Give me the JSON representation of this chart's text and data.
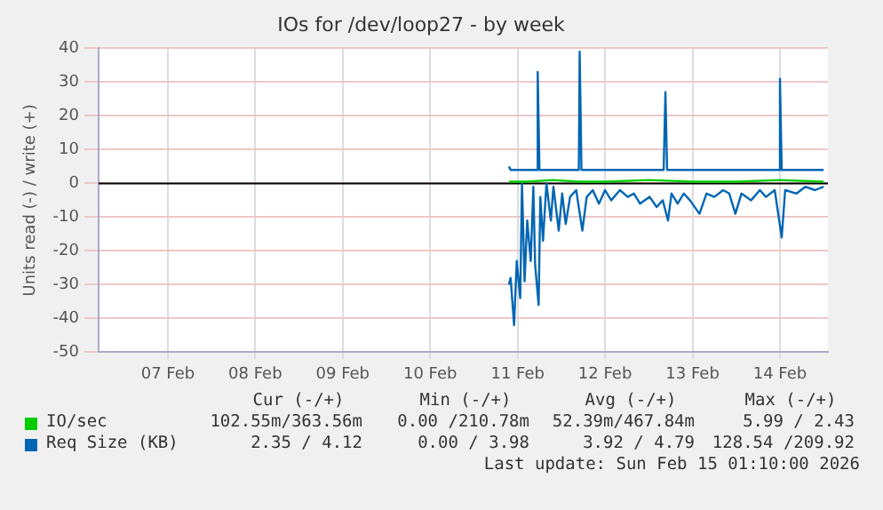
{
  "chart_data": {
    "type": "line",
    "title": "IOs for /dev/loop27 - by week",
    "ylabel": "Units read (-) / write (+)",
    "xlim": [
      "2026-02-06T17:00",
      "2026-02-15T01:10"
    ],
    "xticks": [
      {
        "value": "2026-02-07T12:00",
        "label": "07 Feb"
      },
      {
        "value": "2026-02-08T12:00",
        "label": "08 Feb"
      },
      {
        "value": "2026-02-09T12:00",
        "label": "09 Feb"
      },
      {
        "value": "2026-02-10T12:00",
        "label": "10 Feb"
      },
      {
        "value": "2026-02-11T12:00",
        "label": "11 Feb"
      },
      {
        "value": "2026-02-12T12:00",
        "label": "12 Feb"
      },
      {
        "value": "2026-02-13T12:00",
        "label": "13 Feb"
      },
      {
        "value": "2026-02-14T12:00",
        "label": "14 Feb"
      }
    ],
    "ylim": [
      -50,
      40
    ],
    "yticks": [
      -50,
      -40,
      -30,
      -20,
      -10,
      0,
      10,
      20,
      30,
      40
    ],
    "grid": true,
    "legend": "bottom",
    "marker": "none",
    "line_style": "solid",
    "ref_lines": [
      {
        "axis": "y",
        "value": 0,
        "color": "#000000"
      }
    ],
    "series": [
      {
        "name": "IO/sec",
        "color": "#00cc00",
        "x": [
          "2026-02-11T09:36",
          "2026-02-11T14:24",
          "2026-02-11T21:36",
          "2026-02-12T04:48",
          "2026-02-12T12:00",
          "2026-02-13T00:00",
          "2026-02-13T12:00",
          "2026-02-14T00:00",
          "2026-02-14T12:00",
          "2026-02-15T00:00"
        ],
        "values": [
          0.5,
          0.5,
          1,
          0.5,
          0.5,
          1,
          0.5,
          0.5,
          1,
          0.5
        ]
      },
      {
        "color": "#0066b3",
        "x": [
          "2026-02-11T09:36",
          "2026-02-11T10:05",
          "2026-02-11T11:02",
          "2026-02-11T11:46",
          "2026-02-11T12:43",
          "2026-02-11T13:12",
          "2026-02-11T13:55",
          "2026-02-11T14:38",
          "2026-02-11T15:36",
          "2026-02-11T16:19",
          "2026-02-11T16:48",
          "2026-02-11T17:46",
          "2026-02-11T18:14",
          "2026-02-11T18:58",
          "2026-02-11T19:55",
          "2026-02-11T21:07",
          "2026-02-11T21:50",
          "2026-02-11T23:17",
          "2026-02-12T00:14",
          "2026-02-12T01:12",
          "2026-02-12T02:24",
          "2026-02-12T04:05",
          "2026-02-12T05:46",
          "2026-02-12T06:58",
          "2026-02-12T08:38",
          "2026-02-12T10:19",
          "2026-02-12T12:00",
          "2026-02-12T13:41",
          "2026-02-12T16:05",
          "2026-02-12T18:14",
          "2026-02-12T19:55",
          "2026-02-12T21:36",
          "2026-02-13T00:14",
          "2026-02-13T02:10",
          "2026-02-13T03:50",
          "2026-02-13T05:17",
          "2026-02-13T06:14",
          "2026-02-13T07:55",
          "2026-02-13T09:36",
          "2026-02-13T11:17",
          "2026-02-13T13:55",
          "2026-02-13T15:50",
          "2026-02-13T18:00",
          "2026-02-13T20:24",
          "2026-02-13T22:05",
          "2026-02-13T23:46",
          "2026-02-14T01:26",
          "2026-02-14T04:05",
          "2026-02-14T06:29",
          "2026-02-14T08:10",
          "2026-02-14T10:34",
          "2026-02-14T12:29",
          "2026-02-14T13:26",
          "2026-02-14T16:34",
          "2026-02-14T18:58",
          "2026-02-14T21:36",
          "2026-02-15T00:00"
        ],
        "values": [
          -30,
          -28,
          -42,
          -23,
          -34,
          0,
          -29,
          -11,
          -23,
          -1,
          -24,
          -36,
          -4,
          -17,
          0,
          -11,
          -1,
          -14,
          -3,
          -12,
          -4,
          -2,
          -14,
          -4,
          -2,
          -6,
          -2,
          -5,
          -2,
          -4,
          -3,
          -6,
          -4,
          -7,
          -5,
          -11,
          -3,
          -6,
          -3,
          -5,
          -9,
          -3,
          -4,
          -2,
          -3,
          -9,
          -3,
          -5,
          -2,
          -4,
          -2,
          -16,
          -2,
          -3,
          -1,
          -2,
          -1
        ]
      },
      {
        "name": "Req Size (KB)",
        "color": "#0066b3",
        "x": [
          "2026-02-11T09:36",
          "2026-02-11T10:05",
          "2026-02-11T17:17",
          "2026-02-11T17:31",
          "2026-02-11T18:00",
          "2026-02-12T04:48",
          "2026-02-12T05:02",
          "2026-02-12T05:31",
          "2026-02-13T04:05",
          "2026-02-13T04:34",
          "2026-02-13T05:02",
          "2026-02-14T11:31",
          "2026-02-14T12:00",
          "2026-02-14T12:29",
          "2026-02-15T00:00"
        ],
        "values": [
          5,
          4,
          4,
          33,
          4,
          4,
          39,
          4,
          4,
          27,
          4,
          4,
          31,
          4,
          4
        ]
      }
    ],
    "annotations": [
      "Cur (-/+)",
      "Min (-/+)",
      "Avg (-/+)",
      "Max (-/+)",
      "102.55m/363.56m",
      "0.00 /210.78m",
      "52.39m/467.84m",
      "5.99 / 2.43",
      "2.35 / 4.12",
      "0.00 / 3.98",
      "3.92 / 4.79",
      "128.54 /209.92",
      "Last update: Sun Feb 15 01:10:00 2026"
    ]
  }
}
